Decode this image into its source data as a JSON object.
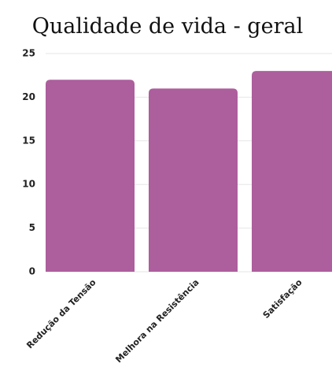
{
  "chart_data": {
    "type": "bar",
    "title": "Qualidade de vida - geral",
    "categories": [
      "Redução da Tensão",
      "Melhora na Resistência",
      "Satisfação"
    ],
    "values": [
      22,
      21,
      23
    ],
    "color": "#ad5e9d",
    "ylim": [
      0,
      25
    ],
    "yticks": [
      0,
      5,
      10,
      15,
      20,
      25
    ],
    "grid": true
  }
}
